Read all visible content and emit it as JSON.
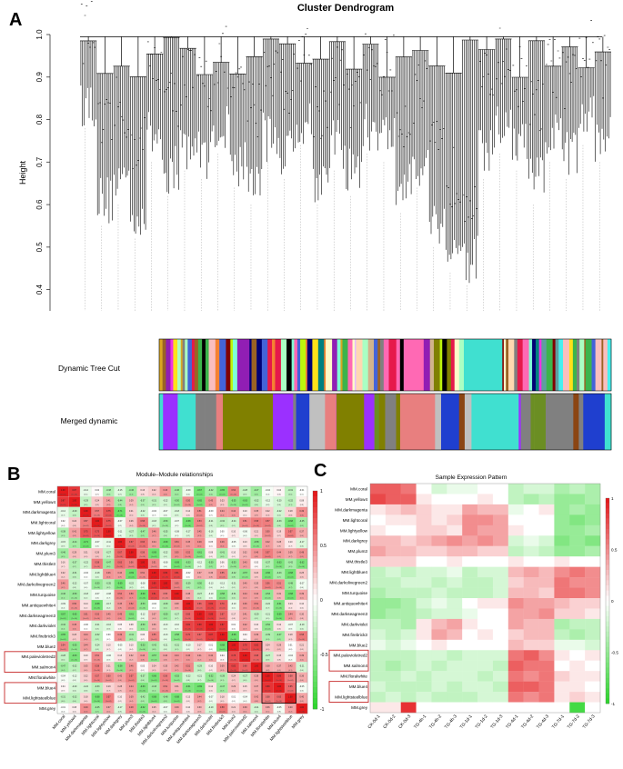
{
  "panel_a": {
    "letter": "A",
    "title": "Cluster Dendrogram",
    "ylabel": "Height",
    "yticks": [
      "1.0",
      "0.9",
      "0.8",
      "0.7",
      "0.6",
      "0.5",
      "0.4"
    ],
    "row_labels": [
      "Dynamic Tree Cut",
      "Merged dynamic"
    ]
  },
  "panel_b": {
    "letter": "B",
    "title": "Module–Module relationships",
    "modules": [
      "MM.coral",
      "MM.yellow4",
      "MM.darkmagenta",
      "MM.lightcoral",
      "MM.lightyellow",
      "MM.darkgrey",
      "MM.plum3",
      "MM.thistle3",
      "MM.lightblue4",
      "MM.darkolivegreen2",
      "MM.turquoise",
      "MM.antiquewhite4",
      "MM.darkseagreen3",
      "MM.darkviolet",
      "MM.firebrick3",
      "MM.blue2",
      "MM.palevioletred2",
      "MM.salmon4",
      "MM.floralwhite",
      "MM.blue4",
      "MM.lightsteelblue",
      "MM.grey"
    ],
    "legend_ticks": [
      "1",
      "0.5",
      "0",
      "-0.5",
      "-1"
    ]
  },
  "panel_c": {
    "letter": "C",
    "title": "Sample Expression Pattern",
    "modules": [
      "MM.coral",
      "MM.yellow4",
      "MM.darkmagenta",
      "MM.lightcoral",
      "MM.lightyellow",
      "MM.darkgrey",
      "MM.plum3",
      "MM.thistle3",
      "MM.lightblue4",
      "MM.darkolivegreen2",
      "MM.turquoise",
      "MM.antiquewhite4",
      "MM.darkseagreen3",
      "MM.darkviolet",
      "MM.firebrick3",
      "MM.blue2",
      "MM.palevioletred2",
      "MM.salmon4",
      "MM.floralwhite",
      "MM.blue4",
      "MM.lightsteelblue",
      "MM.grey"
    ],
    "samples": [
      "CK-0d-1",
      "CK-0d-2",
      "CK-0d-3",
      "TG-4h-1",
      "TG-4h-2",
      "TG-4h-3",
      "TG-1d-1",
      "TG-1d-2",
      "TG-1d-3",
      "TG-4d-1",
      "TG-4d-2",
      "TG-4d-3",
      "TG-7d-1",
      "TG-7d-2",
      "TG-7d-3"
    ],
    "legend_ticks": [
      "1",
      "0.5",
      "0",
      "-0.5",
      "-1"
    ]
  },
  "colors": {
    "positive": "#e41a1c",
    "negative": "#2fd62f",
    "highlight_box": "#c62828"
  },
  "chart_data": [
    {
      "type": "dendrogram",
      "title": "Cluster Dendrogram",
      "ylabel": "Height",
      "ylim": [
        0.35,
        1.0
      ],
      "approx_branch_minima": [
        0.78,
        0.55,
        0.6,
        0.52,
        0.7,
        0.62,
        0.68,
        0.66,
        0.72,
        0.64,
        0.6,
        0.7,
        0.66,
        0.74,
        0.6,
        0.68,
        0.62,
        0.72,
        0.7,
        0.58,
        0.64,
        0.5,
        0.44,
        0.41,
        0.66,
        0.72,
        0.68,
        0.6,
        0.7,
        0.66,
        0.74,
        0.7
      ]
    },
    {
      "type": "heatmap",
      "title": "Module–Module relationships",
      "rows": 22,
      "cols": 22,
      "scale": [
        -1,
        1
      ],
      "note": "symmetric correlation matrix, diagonal = 1"
    },
    {
      "type": "heatmap",
      "title": "Sample Expression Pattern",
      "rows": 22,
      "cols": 15,
      "scale": [
        -1,
        1
      ]
    }
  ]
}
